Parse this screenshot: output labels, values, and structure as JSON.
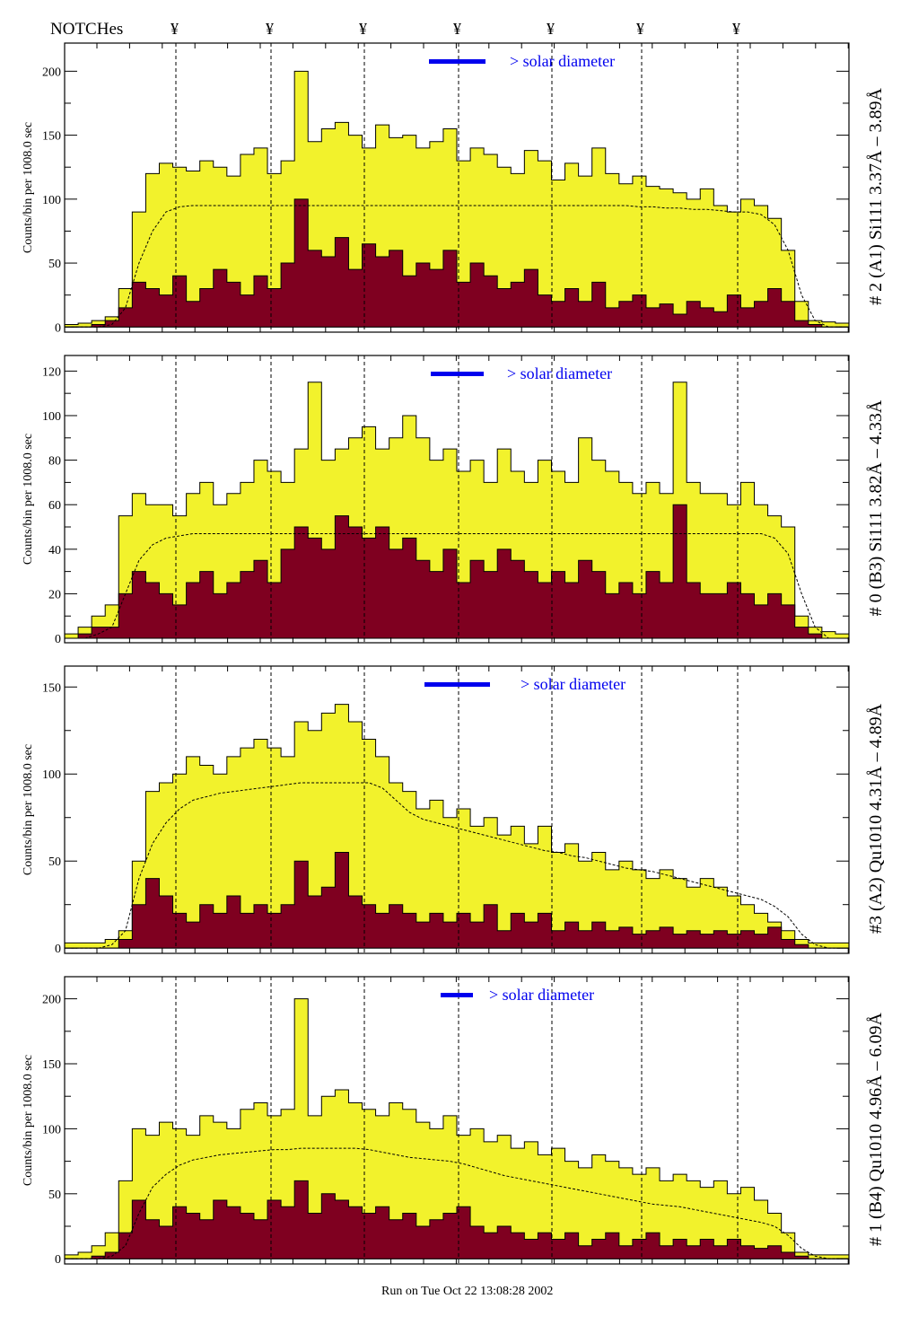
{
  "header": {
    "notches_label": "NOTCHes",
    "notch_symbols": [
      "¥",
      "¥",
      "¥",
      "¥",
      "¥",
      "¥",
      "¥"
    ]
  },
  "footer": {
    "run_label": "Run on Tue Oct 22 13:08:28 2002"
  },
  "colors": {
    "counts_fill": "#f2f22c",
    "signal_fill": "#7f0020",
    "legend": "#0000ee",
    "smooth": "#000000"
  },
  "chart_data": [
    {
      "type": "area",
      "title": "# 2 (A1) Si111  3.37Å – 3.89Å",
      "ylabel": "Counts/bin per   1008.0 sec",
      "legend": "> solar diameter",
      "ylim": [
        -4,
        222
      ],
      "yticks": [
        0,
        50,
        100,
        150,
        200
      ],
      "counts": [
        2,
        3,
        5,
        8,
        30,
        90,
        120,
        128,
        125,
        122,
        130,
        125,
        118,
        135,
        140,
        120,
        130,
        200,
        145,
        155,
        160,
        150,
        140,
        158,
        148,
        150,
        140,
        145,
        155,
        130,
        140,
        135,
        125,
        120,
        138,
        130,
        115,
        128,
        118,
        140,
        120,
        112,
        118,
        110,
        108,
        105,
        100,
        108,
        95,
        90,
        100,
        95,
        85,
        60,
        20,
        5,
        4,
        3
      ],
      "signal": [
        0,
        0,
        2,
        5,
        15,
        35,
        30,
        25,
        40,
        20,
        30,
        45,
        35,
        25,
        40,
        30,
        50,
        100,
        60,
        55,
        70,
        45,
        65,
        55,
        60,
        40,
        50,
        45,
        60,
        35,
        50,
        40,
        30,
        35,
        45,
        25,
        20,
        30,
        20,
        35,
        15,
        20,
        25,
        15,
        18,
        10,
        20,
        15,
        12,
        25,
        15,
        20,
        30,
        20,
        5,
        2,
        0,
        0
      ],
      "smooth": [
        0,
        0,
        0,
        2,
        15,
        50,
        75,
        90,
        94,
        95,
        95,
        95,
        95,
        95,
        95,
        95,
        95,
        95,
        95,
        95,
        95,
        95,
        95,
        95,
        95,
        95,
        95,
        95,
        95,
        95,
        95,
        95,
        95,
        95,
        95,
        95,
        95,
        95,
        95,
        95,
        95,
        95,
        94,
        94,
        93,
        93,
        92,
        92,
        91,
        90,
        90,
        88,
        80,
        60,
        25,
        5,
        0,
        0
      ]
    },
    {
      "type": "area",
      "title": "# 0 (B3) Si111  3.82Å – 4.33Å",
      "ylabel": "Counts/bin per   1008.0 sec",
      "legend": "> solar diameter",
      "ylim": [
        -2,
        127
      ],
      "yticks": [
        0,
        20,
        40,
        60,
        80,
        100,
        120
      ],
      "counts": [
        2,
        5,
        10,
        15,
        55,
        65,
        60,
        60,
        55,
        65,
        70,
        60,
        65,
        70,
        80,
        75,
        70,
        85,
        115,
        80,
        85,
        90,
        95,
        85,
        90,
        100,
        90,
        80,
        85,
        75,
        80,
        70,
        85,
        75,
        70,
        80,
        75,
        70,
        90,
        80,
        75,
        70,
        65,
        70,
        65,
        115,
        70,
        65,
        65,
        60,
        70,
        60,
        55,
        50,
        10,
        5,
        3,
        2
      ],
      "signal": [
        0,
        2,
        5,
        5,
        20,
        30,
        25,
        20,
        15,
        25,
        30,
        20,
        25,
        30,
        35,
        25,
        40,
        50,
        45,
        40,
        55,
        50,
        45,
        50,
        40,
        45,
        35,
        30,
        40,
        25,
        35,
        30,
        40,
        35,
        30,
        25,
        30,
        25,
        35,
        30,
        20,
        25,
        20,
        30,
        25,
        60,
        25,
        20,
        20,
        25,
        20,
        15,
        20,
        15,
        5,
        2,
        0,
        0
      ],
      "smooth": [
        0,
        0,
        2,
        5,
        20,
        35,
        42,
        45,
        46,
        47,
        47,
        47,
        47,
        47,
        47,
        47,
        47,
        47,
        47,
        47,
        47,
        47,
        47,
        47,
        47,
        47,
        47,
        47,
        47,
        47,
        47,
        47,
        47,
        47,
        47,
        47,
        47,
        47,
        47,
        47,
        47,
        47,
        47,
        47,
        47,
        47,
        47,
        47,
        47,
        47,
        47,
        47,
        45,
        38,
        20,
        5,
        0,
        0
      ]
    },
    {
      "type": "area",
      "title": "#3 (A2) Qu1010  4.31Å – 4.89Å",
      "ylabel": "Counts/bin per   1008.0 sec",
      "legend": "> solar diameter",
      "ylim": [
        -3,
        162
      ],
      "yticks": [
        0,
        50,
        100,
        150
      ],
      "counts": [
        3,
        3,
        3,
        5,
        10,
        50,
        90,
        95,
        100,
        110,
        105,
        100,
        110,
        115,
        120,
        115,
        110,
        130,
        125,
        135,
        140,
        130,
        120,
        110,
        95,
        90,
        80,
        85,
        75,
        80,
        70,
        75,
        65,
        70,
        60,
        70,
        55,
        60,
        50,
        55,
        45,
        50,
        45,
        40,
        45,
        40,
        35,
        40,
        35,
        30,
        25,
        20,
        15,
        10,
        5,
        3,
        3,
        3
      ],
      "signal": [
        0,
        0,
        0,
        0,
        5,
        25,
        40,
        30,
        20,
        15,
        25,
        20,
        30,
        20,
        25,
        20,
        25,
        50,
        30,
        35,
        55,
        30,
        25,
        20,
        25,
        20,
        15,
        20,
        15,
        20,
        15,
        25,
        10,
        20,
        15,
        20,
        10,
        15,
        10,
        15,
        10,
        12,
        8,
        10,
        12,
        8,
        10,
        8,
        10,
        8,
        10,
        8,
        12,
        5,
        2,
        0,
        0,
        0
      ],
      "smooth": [
        0,
        0,
        0,
        2,
        10,
        40,
        60,
        72,
        80,
        85,
        87,
        89,
        90,
        91,
        92,
        93,
        94,
        95,
        95,
        95,
        95,
        95,
        95,
        92,
        85,
        78,
        74,
        72,
        70,
        68,
        66,
        64,
        62,
        60,
        58,
        56,
        55,
        53,
        52,
        50,
        48,
        46,
        45,
        44,
        42,
        40,
        38,
        36,
        34,
        32,
        30,
        28,
        24,
        18,
        8,
        2,
        0,
        0
      ]
    },
    {
      "type": "area",
      "title": "# 1 (B4) Qu1010 4.96Å – 6.09Å",
      "ylabel": "Counts/bin per   1008.0 sec",
      "legend": "> solar diameter",
      "ylim": [
        -4,
        217
      ],
      "yticks": [
        0,
        50,
        100,
        150,
        200
      ],
      "counts": [
        3,
        5,
        10,
        20,
        60,
        100,
        95,
        105,
        100,
        95,
        110,
        105,
        100,
        115,
        120,
        110,
        115,
        200,
        110,
        125,
        130,
        120,
        115,
        110,
        120,
        115,
        105,
        100,
        110,
        95,
        100,
        90,
        95,
        85,
        90,
        80,
        85,
        75,
        70,
        80,
        75,
        70,
        65,
        70,
        60,
        65,
        60,
        55,
        60,
        50,
        55,
        45,
        35,
        20,
        5,
        3,
        3,
        3
      ],
      "signal": [
        0,
        0,
        2,
        5,
        20,
        45,
        30,
        25,
        40,
        35,
        30,
        45,
        40,
        35,
        30,
        45,
        40,
        60,
        35,
        50,
        45,
        40,
        35,
        40,
        30,
        35,
        25,
        30,
        35,
        40,
        25,
        20,
        25,
        20,
        15,
        20,
        15,
        20,
        10,
        15,
        20,
        10,
        15,
        20,
        10,
        15,
        10,
        15,
        10,
        15,
        10,
        8,
        10,
        5,
        2,
        0,
        0,
        0
      ],
      "smooth": [
        0,
        0,
        0,
        2,
        10,
        35,
        55,
        65,
        72,
        76,
        78,
        80,
        81,
        82,
        83,
        84,
        84,
        85,
        85,
        85,
        85,
        85,
        84,
        82,
        80,
        78,
        77,
        76,
        75,
        73,
        70,
        67,
        64,
        62,
        60,
        58,
        56,
        54,
        52,
        50,
        48,
        46,
        44,
        42,
        41,
        40,
        38,
        36,
        34,
        32,
        30,
        28,
        25,
        18,
        8,
        2,
        0,
        0
      ]
    }
  ]
}
